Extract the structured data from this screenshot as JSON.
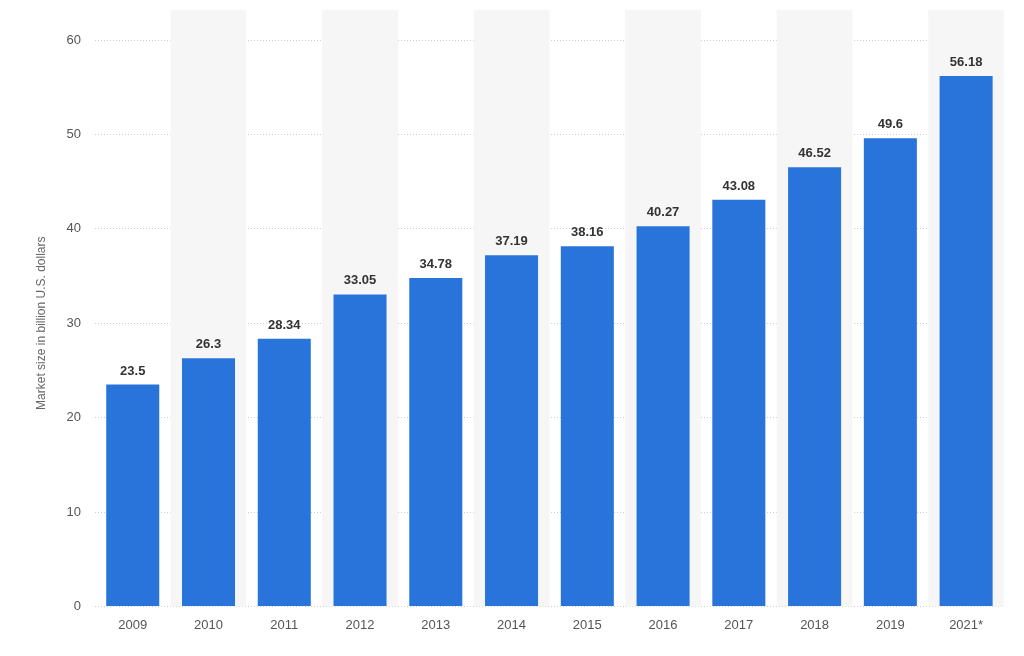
{
  "chart_data": {
    "type": "bar",
    "y_label": "Market size in billion U.S. dollars",
    "categories": [
      "2009",
      "2010",
      "2011",
      "2012",
      "2013",
      "2014",
      "2015",
      "2016",
      "2017",
      "2018",
      "2019",
      "2021*"
    ],
    "values": [
      23.5,
      26.3,
      28.34,
      33.05,
      34.78,
      37.19,
      38.16,
      40.27,
      43.08,
      46.52,
      49.6,
      56.18
    ],
    "color": "#2874db",
    "ylim": [
      0,
      60
    ],
    "yticks": [
      0,
      10,
      20,
      30,
      40,
      50,
      60
    ],
    "grid": true,
    "data_labels": true
  }
}
